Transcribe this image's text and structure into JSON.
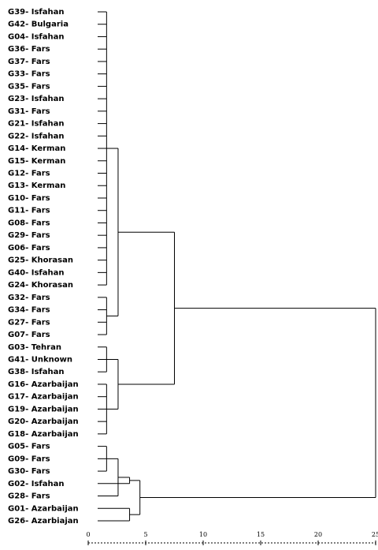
{
  "chart_data": {
    "type": "dendrogram",
    "leaves": [
      "G39- Isfahan",
      "G42- Bulgaria",
      "G04- Isfahan",
      "G36- Fars",
      "G37- Fars",
      "G33- Fars",
      "G35- Fars",
      "G23- Isfahan",
      "G31- Fars",
      "G21- Isfahan",
      "G22- Isfahan",
      "G14- Kerman",
      "G15- Kerman",
      "G12- Fars",
      "G13- Kerman",
      "G10- Fars",
      "G11- Fars",
      "G08- Fars",
      "G29- Fars",
      "G06- Fars",
      "G25- Khorasan",
      "G40- Isfahan",
      "G24- Khorasan",
      "G32- Fars",
      "G34- Fars",
      "G27- Fars",
      "G07- Fars",
      "G03- Tehran",
      "G41- Unknown",
      "G38- Isfahan",
      "G16- Azarbaijan",
      "G17- Azarbaijan",
      "G19- Azarbaijan",
      "G20- Azarbaijan",
      "G18- Azarbaijan",
      "G05- Fars",
      "G09- Fars",
      "G30- Fars",
      "G02- Isfahan",
      "G28- Fars",
      "G01- Azarbaijan",
      "G26- Azarbiajan"
    ],
    "merges": [
      {
        "children": [
          0,
          1,
          2,
          3,
          4,
          5,
          6,
          7,
          8,
          9,
          10,
          11,
          12,
          13,
          14,
          15,
          16,
          17,
          18,
          19,
          20,
          21,
          22
        ],
        "height": 1.6
      },
      {
        "children": [
          23,
          24,
          25,
          26
        ],
        "height": 1.6
      },
      {
        "children": [
          42,
          43
        ],
        "height": 2.6
      },
      {
        "children": [
          27,
          28,
          29
        ],
        "height": 1.6
      },
      {
        "children": [
          30,
          31,
          32,
          33,
          34
        ],
        "height": 1.6
      },
      {
        "children": [
          45,
          46
        ],
        "height": 2.6
      },
      {
        "children": [
          44,
          47
        ],
        "height": 7.5
      },
      {
        "children": [
          35,
          36,
          37
        ],
        "height": 1.6
      },
      {
        "children": [
          49,
          39
        ],
        "height": 2.6
      },
      {
        "children": [
          50,
          38
        ],
        "height": 3.6
      },
      {
        "children": [
          40,
          41
        ],
        "height": 3.6
      },
      {
        "children": [
          51,
          52
        ],
        "height": 4.5
      },
      {
        "children": [
          48,
          53
        ],
        "height": 25
      }
    ],
    "xlim": [
      0,
      25
    ],
    "xticks": [
      0,
      5,
      10,
      15,
      20,
      25
    ]
  }
}
